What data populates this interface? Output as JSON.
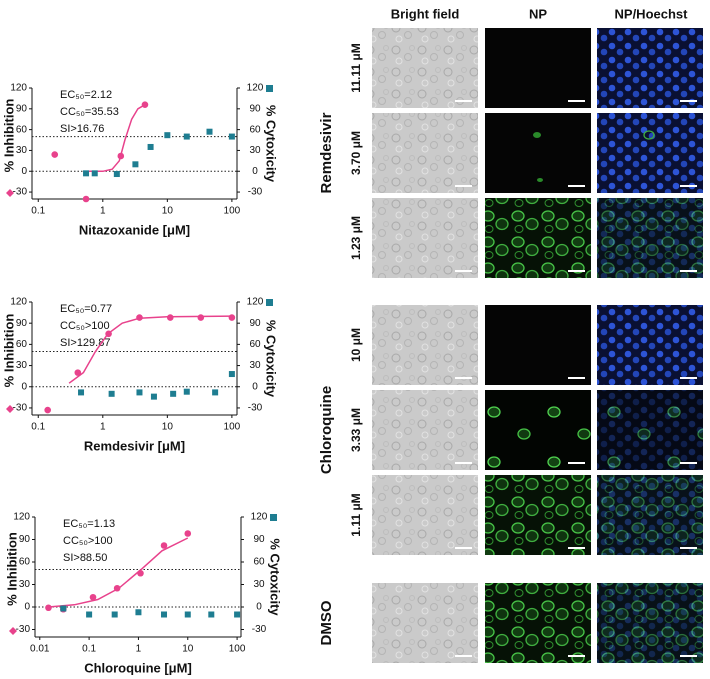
{
  "chart_data": [
    {
      "type": "scatter",
      "x_label": "Nitazoxanide [μM]",
      "annotations": [
        "EC₅₀=2.12",
        "CC₅₀=35.53",
        "SI>16.76"
      ],
      "xlog": true,
      "xlim": [
        0.08,
        120
      ],
      "xticks": [
        0.1,
        1,
        10,
        100
      ],
      "ylim": [
        -40,
        120
      ],
      "yticks": [
        -30,
        0,
        30,
        60,
        90,
        120
      ],
      "y2lim": [
        -40,
        120
      ],
      "y2ticks": [
        -30,
        0,
        30,
        60,
        90,
        120
      ],
      "hlines": [
        50,
        0
      ],
      "series": [
        {
          "name": "% Inhibition",
          "color": "#e8428c",
          "marker": "circle",
          "axis": "y",
          "x": [
            0.18,
            0.55,
            1.9,
            4.5
          ],
          "values": [
            24,
            -40,
            22,
            96
          ]
        },
        {
          "name": "% Cytoxicity",
          "color": "#1e7d91",
          "marker": "square",
          "axis": "y2",
          "x": [
            0.55,
            0.75,
            1.65,
            3.2,
            5.5,
            10,
            20,
            45,
            100
          ],
          "values": [
            -3,
            -3,
            -4,
            10,
            35,
            52,
            50,
            57,
            50
          ]
        }
      ],
      "fit": {
        "color": "#e8428c",
        "x": [
          0.55,
          1,
          1.4,
          1.8,
          2.2,
          2.8,
          3.5,
          4.5
        ],
        "values": [
          0,
          0,
          3,
          15,
          45,
          75,
          90,
          96
        ]
      }
    },
    {
      "type": "scatter",
      "x_label": "Remdesivir [μM]",
      "annotations": [
        "EC₅₀=0.77",
        "CC₅₀>100",
        "SI>129.87"
      ],
      "xlog": true,
      "xlim": [
        0.08,
        120
      ],
      "xticks": [
        0.1,
        1,
        10,
        100
      ],
      "ylim": [
        -40,
        120
      ],
      "yticks": [
        -30,
        0,
        30,
        60,
        90,
        120
      ],
      "y2lim": [
        -40,
        120
      ],
      "y2ticks": [
        -30,
        0,
        30,
        60,
        90,
        120
      ],
      "hlines": [
        50,
        0
      ],
      "series": [
        {
          "name": "% Inhibition",
          "color": "#e8428c",
          "marker": "circle",
          "axis": "y",
          "x": [
            0.14,
            0.41,
            1.23,
            3.7,
            11.1,
            33,
            100
          ],
          "values": [
            -33,
            20,
            75,
            98,
            98,
            98,
            98
          ]
        },
        {
          "name": "% Cytoxicity",
          "color": "#1e7d91",
          "marker": "square",
          "axis": "y2",
          "x": [
            0.46,
            1.37,
            3.7,
            6.2,
            12.3,
            20,
            55,
            100
          ],
          "values": [
            -8,
            -10,
            -8,
            -14,
            -10,
            -7,
            -8,
            18
          ]
        }
      ],
      "fit": {
        "color": "#e8428c",
        "x": [
          0.3,
          0.5,
          0.77,
          1.2,
          2,
          3.7,
          10,
          100
        ],
        "values": [
          5,
          20,
          50,
          75,
          90,
          97,
          99,
          100
        ]
      }
    },
    {
      "type": "scatter",
      "x_label": "Chloroquine [μM]",
      "annotations": [
        "EC₅₀=1.13",
        "CC₅₀>100",
        "SI>88.50"
      ],
      "xlog": true,
      "xlim": [
        0.008,
        120
      ],
      "xticks": [
        0.01,
        0.1,
        1,
        10,
        100
      ],
      "ylim": [
        -40,
        120
      ],
      "yticks": [
        -30,
        0,
        30,
        60,
        90,
        120
      ],
      "y2lim": [
        -40,
        120
      ],
      "y2ticks": [
        -30,
        0,
        30,
        60,
        90,
        120
      ],
      "hlines": [
        50,
        0
      ],
      "series": [
        {
          "name": "% Inhibition",
          "color": "#e8428c",
          "marker": "circle",
          "axis": "y",
          "x": [
            0.015,
            0.03,
            0.12,
            0.37,
            1.1,
            3.3,
            10
          ],
          "values": [
            -1,
            -3,
            13,
            25,
            45,
            82,
            98
          ]
        },
        {
          "name": "% Cytoxicity",
          "color": "#1e7d91",
          "marker": "square",
          "axis": "y2",
          "x": [
            0.03,
            0.1,
            0.33,
            1,
            3.3,
            10,
            30,
            100
          ],
          "values": [
            -2,
            -10,
            -10,
            -7,
            -10,
            -10,
            -10,
            -10
          ]
        }
      ],
      "fit": {
        "color": "#e8428c",
        "x": [
          0.015,
          0.05,
          0.15,
          0.4,
          1.13,
          3,
          10
        ],
        "values": [
          0,
          3,
          10,
          25,
          50,
          75,
          92
        ]
      }
    }
  ],
  "image_panel": {
    "columns": [
      "Bright field",
      "NP",
      "NP/Hoechst"
    ],
    "groups": [
      {
        "label": "Remdesivir",
        "rows": [
          "11.11 μM",
          "3.70 μM",
          "1.23 μM"
        ]
      },
      {
        "label": "Chloroquine",
        "rows": [
          "10 μM",
          "3.33 μM",
          "1.11 μM"
        ]
      },
      {
        "label": "DMSO",
        "rows": []
      }
    ]
  }
}
